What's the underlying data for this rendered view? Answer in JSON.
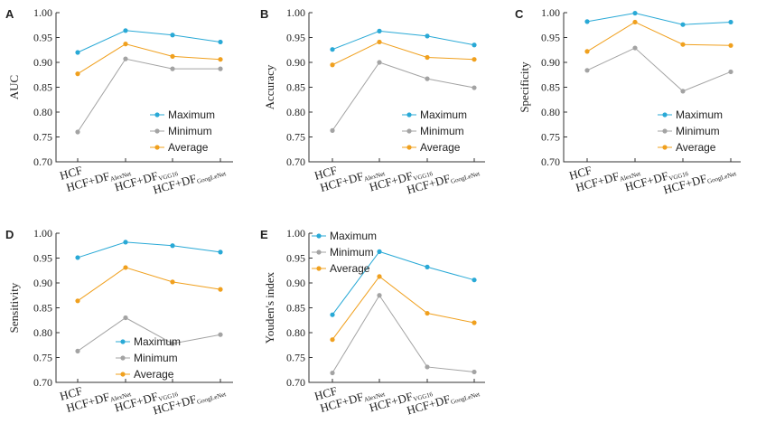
{
  "chart_data": [
    {
      "panel": "A",
      "type": "line",
      "ylabel": "AUC",
      "ylim": [
        0.7,
        1.0
      ],
      "yticks": [
        "0.70",
        "0.75",
        "0.80",
        "0.85",
        "0.90",
        "0.95",
        "1.00"
      ],
      "categories": [
        {
          "main": "HCF",
          "sub": ""
        },
        {
          "main": "HCF+DF",
          "sub": "AlexNet"
        },
        {
          "main": "HCF+DF",
          "sub": "VGG16"
        },
        {
          "main": "HCF+DF",
          "sub": "GoogLeNet"
        }
      ],
      "legend": "bottom-right",
      "series": [
        {
          "name": "Maximum",
          "color": "#29a9d6",
          "values": [
            0.92,
            0.964,
            0.955,
            0.941
          ]
        },
        {
          "name": "Minimum",
          "color": "#a3a3a3",
          "values": [
            0.76,
            0.907,
            0.887,
            0.887
          ]
        },
        {
          "name": "Average",
          "color": "#f0a01e",
          "values": [
            0.877,
            0.937,
            0.912,
            0.906
          ]
        }
      ]
    },
    {
      "panel": "B",
      "type": "line",
      "ylabel": "Accuracy",
      "ylim": [
        0.7,
        1.0
      ],
      "yticks": [
        "0.70",
        "0.75",
        "0.80",
        "0.85",
        "0.90",
        "0.95",
        "1.00"
      ],
      "categories": [
        {
          "main": "HCF",
          "sub": ""
        },
        {
          "main": "HCF+DF",
          "sub": "AlexNet"
        },
        {
          "main": "HCF+DF",
          "sub": "VGG16"
        },
        {
          "main": "HCF+DF",
          "sub": "GoogLeNet"
        }
      ],
      "legend": "bottom-right",
      "series": [
        {
          "name": "Maximum",
          "color": "#29a9d6",
          "values": [
            0.926,
            0.963,
            0.953,
            0.935
          ]
        },
        {
          "name": "Minimum",
          "color": "#a3a3a3",
          "values": [
            0.763,
            0.9,
            0.867,
            0.849
          ]
        },
        {
          "name": "Average",
          "color": "#f0a01e",
          "values": [
            0.895,
            0.941,
            0.91,
            0.906
          ]
        }
      ]
    },
    {
      "panel": "C",
      "type": "line",
      "ylabel": "Specificity",
      "ylim": [
        0.7,
        1.0
      ],
      "yticks": [
        "0.70",
        "0.75",
        "0.80",
        "0.85",
        "0.90",
        "0.95",
        "1.00"
      ],
      "categories": [
        {
          "main": "HCF",
          "sub": ""
        },
        {
          "main": "HCF+DF",
          "sub": "AlexNet"
        },
        {
          "main": "HCF+DF",
          "sub": "VGG16"
        },
        {
          "main": "HCF+DF",
          "sub": "GoogLeNet"
        }
      ],
      "legend": "bottom-right",
      "series": [
        {
          "name": "Maximum",
          "color": "#29a9d6",
          "values": [
            0.982,
            0.999,
            0.976,
            0.981
          ]
        },
        {
          "name": "Minimum",
          "color": "#a3a3a3",
          "values": [
            0.884,
            0.929,
            0.842,
            0.881
          ]
        },
        {
          "name": "Average",
          "color": "#f0a01e",
          "values": [
            0.922,
            0.981,
            0.936,
            0.934
          ]
        }
      ]
    },
    {
      "panel": "D",
      "type": "line",
      "ylabel": "Sensitivity",
      "ylim": [
        0.7,
        1.0
      ],
      "yticks": [
        "0.70",
        "0.75",
        "0.80",
        "0.85",
        "0.90",
        "0.95",
        "1.00"
      ],
      "categories": [
        {
          "main": "HCF",
          "sub": ""
        },
        {
          "main": "HCF+DF",
          "sub": "AlexNet"
        },
        {
          "main": "HCF+DF",
          "sub": "VGG16"
        },
        {
          "main": "HCF+DF",
          "sub": "GoogLeNet"
        }
      ],
      "legend": "bottom-left",
      "series": [
        {
          "name": "Maximum",
          "color": "#29a9d6",
          "values": [
            0.951,
            0.982,
            0.975,
            0.962
          ]
        },
        {
          "name": "Minimum",
          "color": "#a3a3a3",
          "values": [
            0.763,
            0.83,
            0.778,
            0.796
          ]
        },
        {
          "name": "Average",
          "color": "#f0a01e",
          "values": [
            0.864,
            0.931,
            0.902,
            0.887
          ]
        }
      ]
    },
    {
      "panel": "E",
      "type": "line",
      "ylabel": "Youden's index",
      "ylim": [
        0.7,
        1.0
      ],
      "yticks": [
        "0.70",
        "0.75",
        "0.80",
        "0.85",
        "0.90",
        "0.95",
        "1.00"
      ],
      "categories": [
        {
          "main": "HCF",
          "sub": ""
        },
        {
          "main": "HCF+DF",
          "sub": "AlexNet"
        },
        {
          "main": "HCF+DF",
          "sub": "VGG16"
        },
        {
          "main": "HCF+DF",
          "sub": "GoogLeNet"
        }
      ],
      "legend": "top-left",
      "series": [
        {
          "name": "Maximum",
          "color": "#29a9d6",
          "values": [
            0.836,
            0.963,
            0.932,
            0.906
          ]
        },
        {
          "name": "Minimum",
          "color": "#a3a3a3",
          "values": [
            0.719,
            0.875,
            0.731,
            0.721
          ]
        },
        {
          "name": "Average",
          "color": "#f0a01e",
          "values": [
            0.786,
            0.913,
            0.839,
            0.82
          ]
        }
      ]
    }
  ]
}
